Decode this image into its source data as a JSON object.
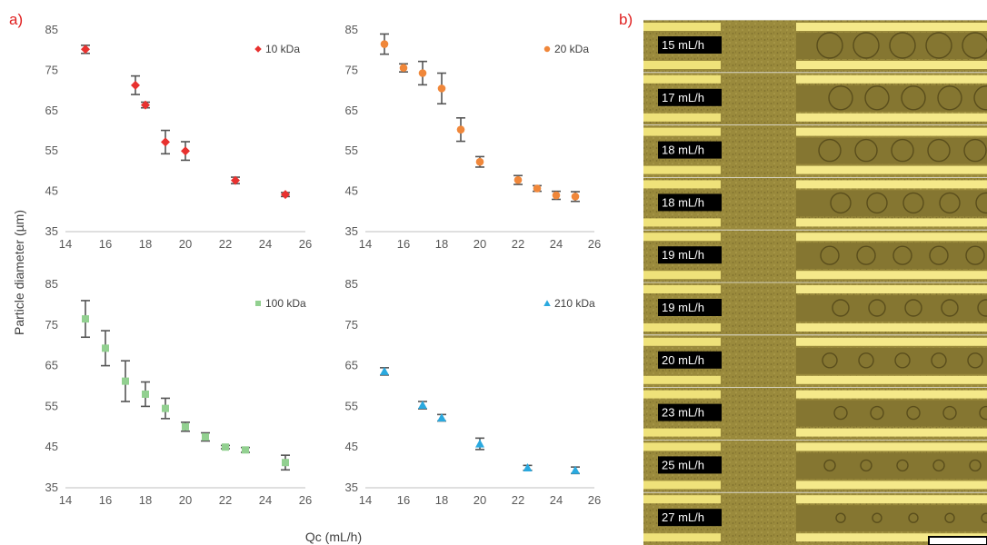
{
  "panel_a_label": "a)",
  "panel_b_label": "b)",
  "colors": {
    "10 kDa": "#e8312f",
    "20 kDa": "#f0873a",
    "100 kDa": "#92d090",
    "210 kDa": "#2aa9df",
    "errorbar": "#555555"
  },
  "chart_data": [
    {
      "type": "scatter",
      "panel": "top-left",
      "series": [
        {
          "name": "10 kDa",
          "marker": "diamond",
          "color": "#e8312f",
          "x": [
            15,
            17.5,
            18,
            19,
            20,
            22.5,
            25
          ],
          "y": [
            80.2,
            71.3,
            66.4,
            57.2,
            55.0,
            47.7,
            44.2
          ],
          "yerr": [
            1.0,
            2.3,
            0.7,
            2.9,
            2.3,
            0.8,
            0.5
          ]
        }
      ],
      "xlim": [
        14,
        26
      ],
      "ylim": [
        35,
        85
      ],
      "xticks": [
        "14",
        "16",
        "18",
        "20",
        "22",
        "24",
        "26"
      ],
      "yticks": [
        "35",
        "45",
        "55",
        "65",
        "75",
        "85"
      ],
      "legend_position": "top-right"
    },
    {
      "type": "scatter",
      "panel": "top-right",
      "series": [
        {
          "name": "20 kDa",
          "marker": "circle",
          "color": "#f0873a",
          "x": [
            15,
            16,
            17,
            18,
            19,
            20,
            22,
            23,
            24,
            25
          ],
          "y": [
            81.5,
            75.6,
            74.3,
            70.5,
            60.3,
            52.3,
            47.8,
            45.7,
            44.0,
            43.7
          ],
          "yerr": [
            2.5,
            1.0,
            2.9,
            3.8,
            2.9,
            1.3,
            1.1,
            0.7,
            1.0,
            1.2
          ]
        }
      ],
      "xlim": [
        14,
        26
      ],
      "ylim": [
        35,
        85
      ],
      "xticks": [
        "14",
        "16",
        "18",
        "20",
        "22",
        "24",
        "26"
      ],
      "yticks": [
        "35",
        "45",
        "55",
        "65",
        "75",
        "85"
      ],
      "legend_position": "top-right"
    },
    {
      "type": "scatter",
      "panel": "bottom-left",
      "series": [
        {
          "name": "100 kDa",
          "marker": "square",
          "color": "#92d090",
          "x": [
            15,
            16,
            17,
            18,
            19,
            20,
            21,
            22,
            23,
            25
          ],
          "y": [
            76.5,
            69.3,
            61.2,
            58.0,
            54.5,
            50.0,
            47.5,
            45.0,
            44.3,
            41.2
          ],
          "yerr": [
            4.5,
            4.3,
            5.0,
            3.0,
            2.5,
            1.1,
            1.0,
            0.4,
            0.6,
            1.8
          ]
        }
      ],
      "xlim": [
        14,
        26
      ],
      "ylim": [
        35,
        85
      ],
      "xticks": [
        "14",
        "16",
        "18",
        "20",
        "22",
        "24",
        "26"
      ],
      "yticks": [
        "35",
        "45",
        "55",
        "65",
        "75",
        "85"
      ],
      "legend_position": "top-right"
    },
    {
      "type": "scatter",
      "panel": "bottom-right",
      "series": [
        {
          "name": "210 kDa",
          "marker": "triangle",
          "color": "#2aa9df",
          "x": [
            15,
            17,
            18,
            20,
            22.5,
            25
          ],
          "y": [
            63.6,
            55.3,
            52.2,
            45.8,
            39.9,
            39.3
          ],
          "yerr": [
            0.9,
            0.9,
            0.8,
            1.4,
            0.6,
            0.8
          ]
        }
      ],
      "xlim": [
        14,
        26
      ],
      "ylim": [
        35,
        85
      ],
      "xticks": [
        "14",
        "16",
        "18",
        "20",
        "22",
        "24",
        "26"
      ],
      "yticks": [
        "35",
        "45",
        "55",
        "65",
        "75",
        "85"
      ],
      "legend_position": "top-right"
    }
  ],
  "shared_axes": {
    "ylabel": "Particle diameter (µm)",
    "xlabel": "Qc (mL/h)"
  },
  "image_strips": [
    "15 mL/h",
    "17 mL/h",
    "18 mL/h",
    "18 mL/h",
    "19 mL/h",
    "19 mL/h",
    "20 mL/h",
    "23 mL/h",
    "25 mL/h",
    "27 mL/h"
  ]
}
